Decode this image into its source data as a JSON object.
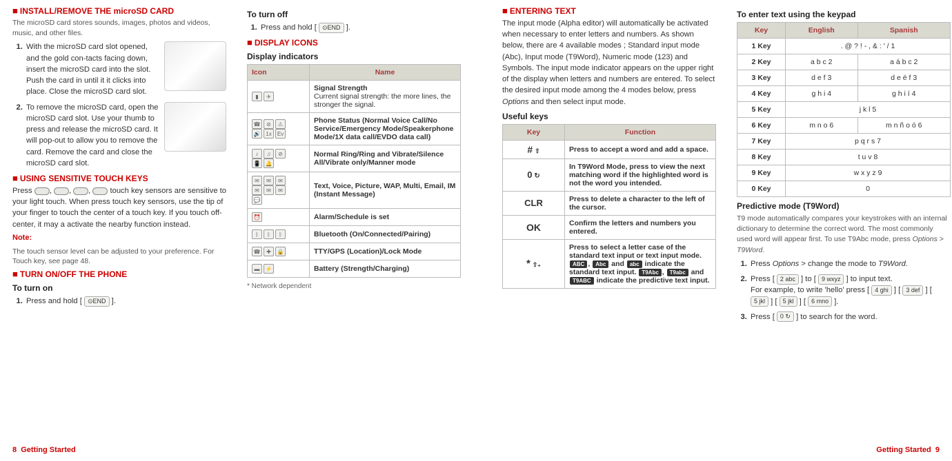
{
  "col1": {
    "h_install": "INSTALL/REMOVE THE microSD CARD",
    "intro_install": "The microSD card stores sounds, images, photos and videos, music, and other files.",
    "step1": "With the microSD card slot opened, and the gold con-tacts facing down, insert the microSD card into the slot. Push the card in until it it clicks into place. Close the microSD card slot.",
    "step2": "To remove the microSD card, open the microSD card slot. Use your thumb to press and release the microSD card. It will pop-out to allow you to remove the card. Remove the card and close the microSD card slot.",
    "h_touch": "USING SENSITIVE TOUCH KEYS",
    "touch_p": "Press , , ,  touch key sensors are sensitive to your light touch. When press touch key sensors, use the tip of your finger to touch the center of a touch key. If you touch off-center, it may a activate the nearby function instead.",
    "note_label": "Note:",
    "note_body": "The touch sensor level can be adjusted to your preference. For Touch key, see page 48.",
    "h_onoff": "TURN ON/OFF THE PHONE",
    "turn_on": "To turn on",
    "turn_on_step": "Press and hold [ ⊙END ]."
  },
  "col2": {
    "turn_off": "To turn off",
    "turn_off_step": "Press and hold [ ⊙END ].",
    "h_icons": "DISPLAY ICONS",
    "h_indicators": "Display indicators",
    "th_icon": "Icon",
    "th_name": "Name",
    "rows": [
      {
        "name": "Signal Strength",
        "desc": "Current signal strength: the more lines, the stronger the signal.",
        "icons": "▮▮▮ ✈"
      },
      {
        "name": "Phone Status (Normal Voice Call/No Service/Emergency Mode/Speakerphone Mode/1X data call/EVDO data call)",
        "icons": "☎ ⊘ ⚠ 🔊 1x Ev"
      },
      {
        "name": "Normal Ring/Ring and Vibrate/Silence All/Vibrate only/Manner mode",
        "icons": "♪ ♫ ⊘ 📳 🔔"
      },
      {
        "name": "Text, Voice, Picture, WAP, Multi, Email, IM (Instant Message)",
        "icons": "✉ ✉ ✉ ✉ ✉ ✉ 💬"
      },
      {
        "name": "Alarm/Schedule is set",
        "icons": "⏰"
      },
      {
        "name": "Bluetooth (On/Connected/Pairing)",
        "icons": "ᛒ ᛒ ᛒ"
      },
      {
        "name": "TTY/GPS (Location)/Lock Mode",
        "icons": "☎ ✚ 🔒"
      },
      {
        "name": "Battery (Strength/Charging)",
        "icons": "▬ ▬⚡"
      }
    ],
    "footnote": "* Network dependent"
  },
  "col3": {
    "h_enter": "ENTERING TEXT",
    "p_enter": "The input mode (Alpha editor) will automatically be activated when necessary to enter letters and numbers. As shown below, there are 4 available modes ; Standard input mode (Abc), Input mode (T9Word), Numeric mode (123) and Symbols. The input mode indicator appears on the upper right of the display when letters and numbers are entered. To select the desired input mode among the 4 modes below, press Options and then select input mode.",
    "h_useful": "Useful keys",
    "th_key": "Key",
    "th_func": "Function",
    "rows": [
      {
        "key": "# ⇧",
        "func": "Press to accept a word and add a space."
      },
      {
        "key": "0 ↻",
        "func": "In T9Word Mode, press to view the next matching word if the highlighted word is not the word you intended."
      },
      {
        "key": "CLR",
        "func": "Press to delete a character to the left of the cursor."
      },
      {
        "key": "OK",
        "func": "Confirm the letters and numbers you entered."
      },
      {
        "key": "* ⇧₊",
        "func": "Press to select a letter case of the standard text input or text input mode. ABC, Abc and abc indicate the standard text input. T9Abc, T9abc and T9ABC indicate the predictive text input."
      }
    ]
  },
  "col4": {
    "h_keypad": "To enter text using the keypad",
    "th_key": "Key",
    "th_en": "English",
    "th_es": "Spanish",
    "rows": [
      {
        "k": "1 Key",
        "en": ". @ ? ! - , & : ' / 1",
        "es": ""
      },
      {
        "k": "2 Key",
        "en": "a b c 2",
        "es": "a á b c 2"
      },
      {
        "k": "3 Key",
        "en": "d e f 3",
        "es": "d e é f 3"
      },
      {
        "k": "4 Key",
        "en": "g h i 4",
        "es": "g h i í 4"
      },
      {
        "k": "5 Key",
        "en": "j k l 5",
        "es": ""
      },
      {
        "k": "6 Key",
        "en": "m n o 6",
        "es": "m n ñ o ó 6"
      },
      {
        "k": "7 Key",
        "en": "p q r s 7",
        "es": ""
      },
      {
        "k": "8 Key",
        "en": "t u v 8",
        "es": ""
      },
      {
        "k": "9 Key",
        "en": "w x y z 9",
        "es": ""
      },
      {
        "k": "0 Key",
        "en": "0",
        "es": ""
      }
    ],
    "h_pred": "Predictive mode (T9Word)",
    "p_pred": "T9 mode automatically compares your keystrokes with an internal dictionary to determine the correct word. The most commonly used word will appear first. To use T9Abc mode, press Options > T9Word.",
    "step1": "Press Options > change the mode to T9Word.",
    "step2a": "Press [ 2 abc ] to [ 9 wxyz ] to input text.",
    "step2b": "For example, to write 'hello' press [ 4 ghi ] [ 3 def ] [ 5 jkl ] [ 5 jkl ] [ 6 mno ].",
    "step3": "Press [ 0 ↻ ] to search for the word."
  },
  "footer": {
    "left_num": "8",
    "left_label": "Getting Started",
    "right_label": "Getting Started",
    "right_num": "9"
  }
}
